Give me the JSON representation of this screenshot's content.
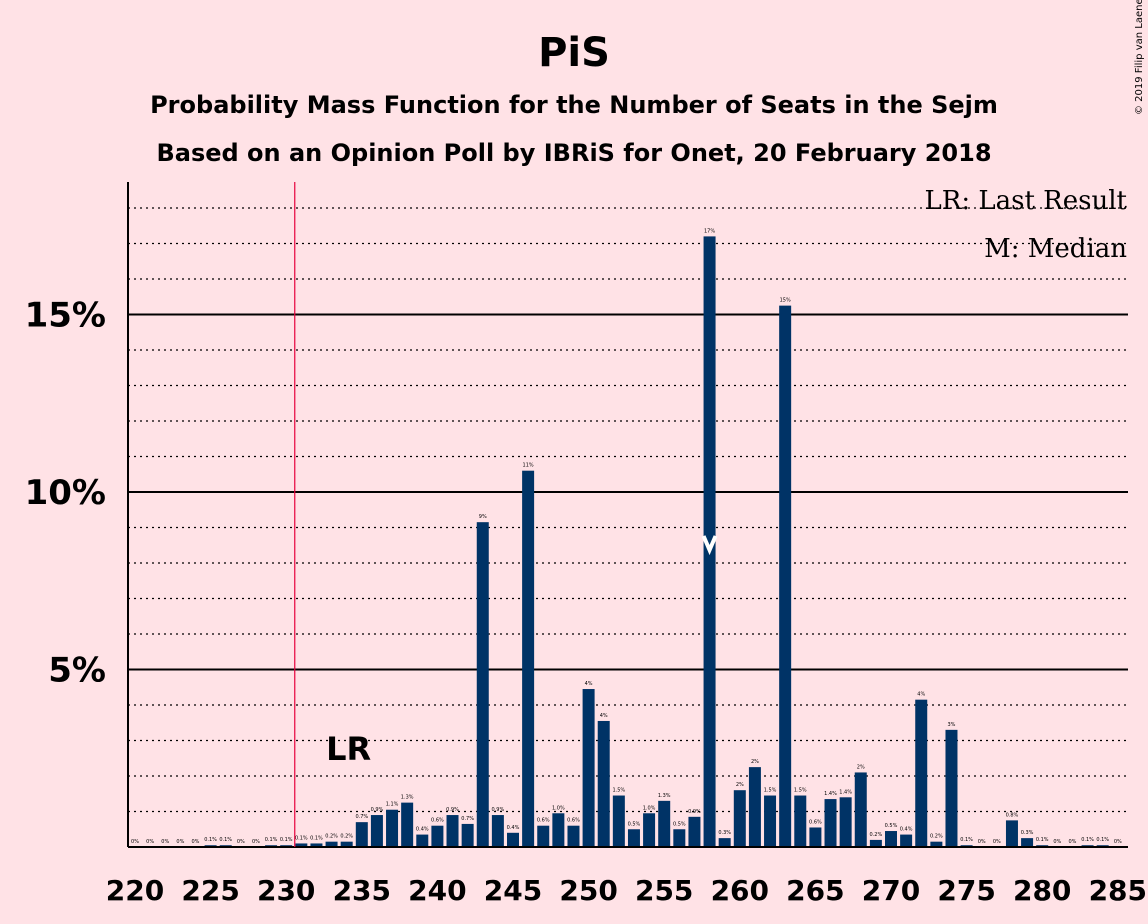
{
  "chart_data": {
    "type": "bar",
    "title": "PiS",
    "subtitles": [
      "Probability Mass Function for the Number of Seats in the Sejm",
      "Based on an Opinion Poll by IBRiS for Onet, 20 February 2018"
    ],
    "copyright": "© 2019 Filip van Laenen",
    "legend": [
      "LR: Last Result",
      "M: Median"
    ],
    "legend_position": "top-right",
    "xlim": [
      220,
      285
    ],
    "ylim": [
      0,
      18.7
    ],
    "x_ticks": [
      220,
      225,
      230,
      235,
      240,
      245,
      250,
      255,
      260,
      265,
      270,
      275,
      280,
      285
    ],
    "y_ticks": [
      {
        "value": 5,
        "label": "5%"
      },
      {
        "value": 10,
        "label": "10%"
      },
      {
        "value": 15,
        "label": "15%"
      }
    ],
    "minor_gridline_step": 1,
    "last_result": 231,
    "last_result_label": "LR",
    "median": 258,
    "bar_color": "#003366",
    "last_result_line_color": "#e6003c",
    "points": [
      {
        "x": 220,
        "y": 0.0,
        "label": "0%"
      },
      {
        "x": 221,
        "y": 0.0,
        "label": "0%"
      },
      {
        "x": 222,
        "y": 0.0,
        "label": "0%"
      },
      {
        "x": 223,
        "y": 0.0,
        "label": "0%"
      },
      {
        "x": 224,
        "y": 0.0,
        "label": "0%"
      },
      {
        "x": 225,
        "y": 0.05,
        "label": "0.1%"
      },
      {
        "x": 226,
        "y": 0.05,
        "label": "0.1%"
      },
      {
        "x": 227,
        "y": 0.0,
        "label": "0%"
      },
      {
        "x": 228,
        "y": 0.0,
        "label": "0%"
      },
      {
        "x": 229,
        "y": 0.05,
        "label": "0.1%"
      },
      {
        "x": 230,
        "y": 0.05,
        "label": "0.1%"
      },
      {
        "x": 231,
        "y": 0.1,
        "label": "0.1%"
      },
      {
        "x": 232,
        "y": 0.1,
        "label": "0.1%"
      },
      {
        "x": 233,
        "y": 0.15,
        "label": "0.2%"
      },
      {
        "x": 234,
        "y": 0.15,
        "label": "0.2%"
      },
      {
        "x": 235,
        "y": 0.7,
        "label": "0.7%"
      },
      {
        "x": 236,
        "y": 0.9,
        "label": "0.9%"
      },
      {
        "x": 237,
        "y": 1.05,
        "label": "1.1%"
      },
      {
        "x": 238,
        "y": 1.25,
        "label": "1.3%"
      },
      {
        "x": 239,
        "y": 0.35,
        "label": "0.4%"
      },
      {
        "x": 240,
        "y": 0.6,
        "label": "0.6%"
      },
      {
        "x": 241,
        "y": 0.9,
        "label": "0.9%"
      },
      {
        "x": 242,
        "y": 0.65,
        "label": "0.7%"
      },
      {
        "x": 243,
        "y": 9.15,
        "label": "9%"
      },
      {
        "x": 244,
        "y": 0.9,
        "label": "0.9%"
      },
      {
        "x": 245,
        "y": 0.4,
        "label": "0.4%"
      },
      {
        "x": 246,
        "y": 10.6,
        "label": "11%"
      },
      {
        "x": 247,
        "y": 0.6,
        "label": "0.6%"
      },
      {
        "x": 248,
        "y": 0.95,
        "label": "1.0%"
      },
      {
        "x": 249,
        "y": 0.6,
        "label": "0.6%"
      },
      {
        "x": 250,
        "y": 4.45,
        "label": "4%"
      },
      {
        "x": 251,
        "y": 3.55,
        "label": "4%"
      },
      {
        "x": 252,
        "y": 1.45,
        "label": "1.5%"
      },
      {
        "x": 253,
        "y": 0.5,
        "label": "0.5%"
      },
      {
        "x": 254,
        "y": 0.95,
        "label": "1.0%"
      },
      {
        "x": 255,
        "y": 1.3,
        "label": "1.3%"
      },
      {
        "x": 256,
        "y": 0.5,
        "label": "0.5%"
      },
      {
        "x": 257,
        "y": 0.85,
        "label": "0.9%"
      },
      {
        "x": 258,
        "y": 17.2,
        "label": "17%"
      },
      {
        "x": 259,
        "y": 0.25,
        "label": "0.3%"
      },
      {
        "x": 260,
        "y": 1.6,
        "label": "2%"
      },
      {
        "x": 261,
        "y": 2.25,
        "label": "2%"
      },
      {
        "x": 262,
        "y": 1.45,
        "label": "1.5%"
      },
      {
        "x": 263,
        "y": 15.25,
        "label": "15%"
      },
      {
        "x": 264,
        "y": 1.45,
        "label": "1.5%"
      },
      {
        "x": 265,
        "y": 0.55,
        "label": "0.6%"
      },
      {
        "x": 266,
        "y": 1.35,
        "label": "1.4%"
      },
      {
        "x": 267,
        "y": 1.4,
        "label": "1.4%"
      },
      {
        "x": 268,
        "y": 2.1,
        "label": "2%"
      },
      {
        "x": 269,
        "y": 0.2,
        "label": "0.2%"
      },
      {
        "x": 270,
        "y": 0.45,
        "label": "0.5%"
      },
      {
        "x": 271,
        "y": 0.35,
        "label": "0.4%"
      },
      {
        "x": 272,
        "y": 4.15,
        "label": "4%"
      },
      {
        "x": 273,
        "y": 0.15,
        "label": "0.2%"
      },
      {
        "x": 274,
        "y": 3.3,
        "label": "3%"
      },
      {
        "x": 275,
        "y": 0.05,
        "label": "0.1%"
      },
      {
        "x": 276,
        "y": 0.0,
        "label": "0%"
      },
      {
        "x": 277,
        "y": 0.0,
        "label": "0%"
      },
      {
        "x": 278,
        "y": 0.75,
        "label": "0.8%"
      },
      {
        "x": 279,
        "y": 0.25,
        "label": "0.3%"
      },
      {
        "x": 280,
        "y": 0.05,
        "label": "0.1%"
      },
      {
        "x": 281,
        "y": 0.0,
        "label": "0%"
      },
      {
        "x": 282,
        "y": 0.0,
        "label": "0%"
      },
      {
        "x": 283,
        "y": 0.05,
        "label": "0.1%"
      },
      {
        "x": 284,
        "y": 0.05,
        "label": "0.1%"
      },
      {
        "x": 285,
        "y": 0.0,
        "label": "0%"
      }
    ]
  }
}
